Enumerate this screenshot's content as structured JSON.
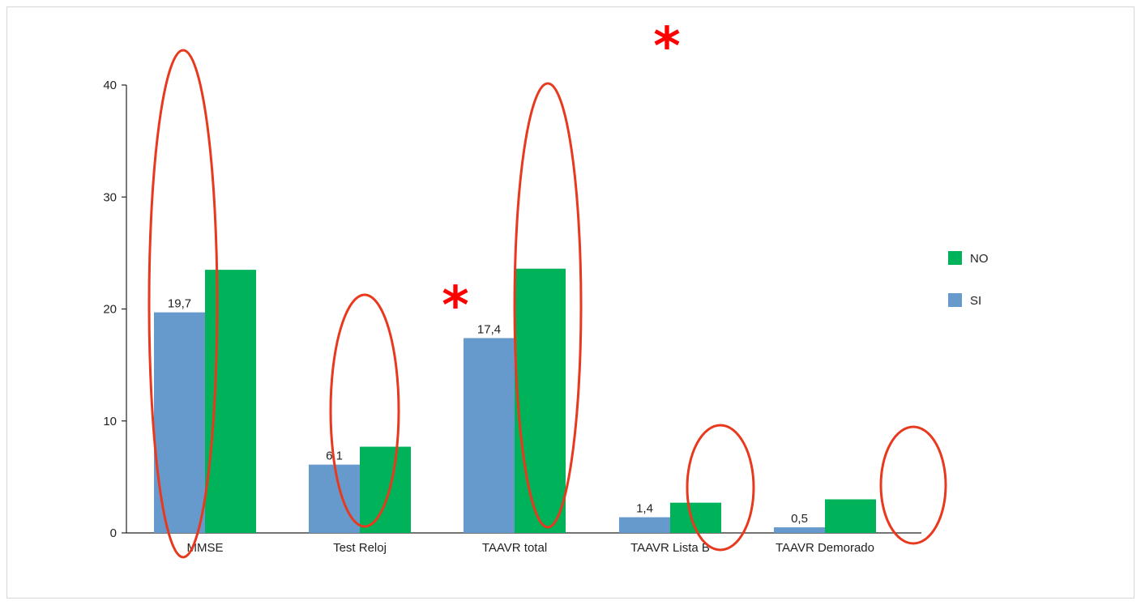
{
  "chart_data": {
    "type": "bar",
    "categories": [
      "MMSE",
      "Test Reloj",
      "TAAVR total",
      "TAAVR Lista B",
      "TAAVR Demorado"
    ],
    "series": [
      {
        "name": "SI",
        "color": "#6699cc",
        "values": [
          19.7,
          6.1,
          17.4,
          1.4,
          0.5
        ],
        "labels": [
          "19,7",
          "6,1",
          "17,4",
          "1,4",
          "0,5"
        ]
      },
      {
        "name": "NO",
        "color": "#00b35a",
        "values": [
          23.5,
          7.7,
          23.6,
          2.7,
          3.0
        ]
      }
    ],
    "legend_order": [
      "NO",
      "SI"
    ],
    "legend_placement": "right",
    "ylim": [
      0,
      40
    ],
    "yticks": [
      0,
      10,
      20,
      30,
      40
    ],
    "grid": false,
    "title": "",
    "xlabel": "",
    "ylabel": "",
    "annotations": {
      "marker_symbol": "*",
      "marker_color": "#ff0000",
      "ellipse_color": "#e8391e",
      "asterisk_categories": [
        "TAAVR total"
      ],
      "ellipse_categories": [
        "MMSE",
        "Test Reloj",
        "TAAVR total",
        "TAAVR Lista B",
        "TAAVR Demorado"
      ]
    }
  }
}
